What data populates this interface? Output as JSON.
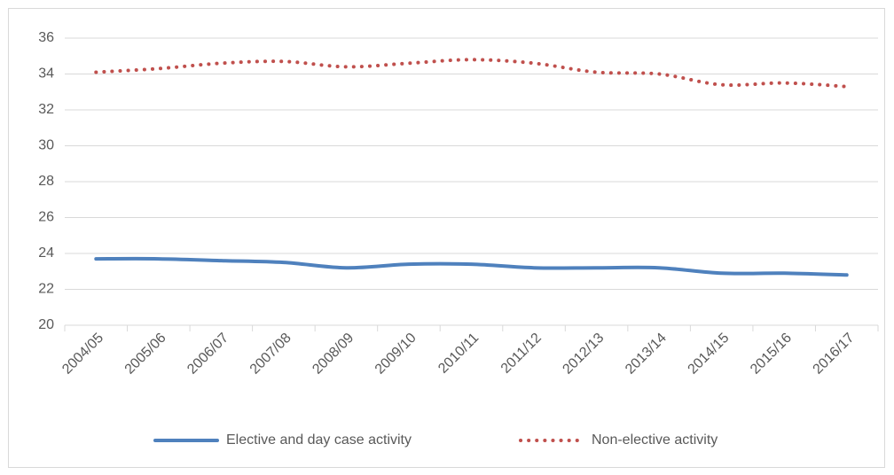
{
  "chart_data": {
    "type": "line",
    "categories": [
      "2004/05",
      "2005/06",
      "2006/07",
      "2007/08",
      "2008/09",
      "2009/10",
      "2010/11",
      "2011/12",
      "2012/13",
      "2013/14",
      "2014/15",
      "2015/16",
      "2016/17"
    ],
    "series": [
      {
        "name": "Elective and day case activity",
        "color": "#4f81bd",
        "style": "solid",
        "values": [
          23.7,
          23.7,
          23.6,
          23.5,
          23.2,
          23.4,
          23.4,
          23.2,
          23.2,
          23.2,
          22.9,
          22.9,
          22.8
        ]
      },
      {
        "name": "Non-elective activity",
        "color": "#c0504d",
        "style": "dotted",
        "values": [
          34.1,
          34.3,
          34.6,
          34.7,
          34.4,
          34.6,
          34.8,
          34.6,
          34.1,
          34.0,
          33.4,
          33.5,
          33.3
        ]
      }
    ],
    "ylim": [
      20,
      36
    ],
    "yticks": [
      20,
      22,
      24,
      26,
      28,
      30,
      32,
      34,
      36
    ],
    "grid": true,
    "legend": "bottom"
  }
}
